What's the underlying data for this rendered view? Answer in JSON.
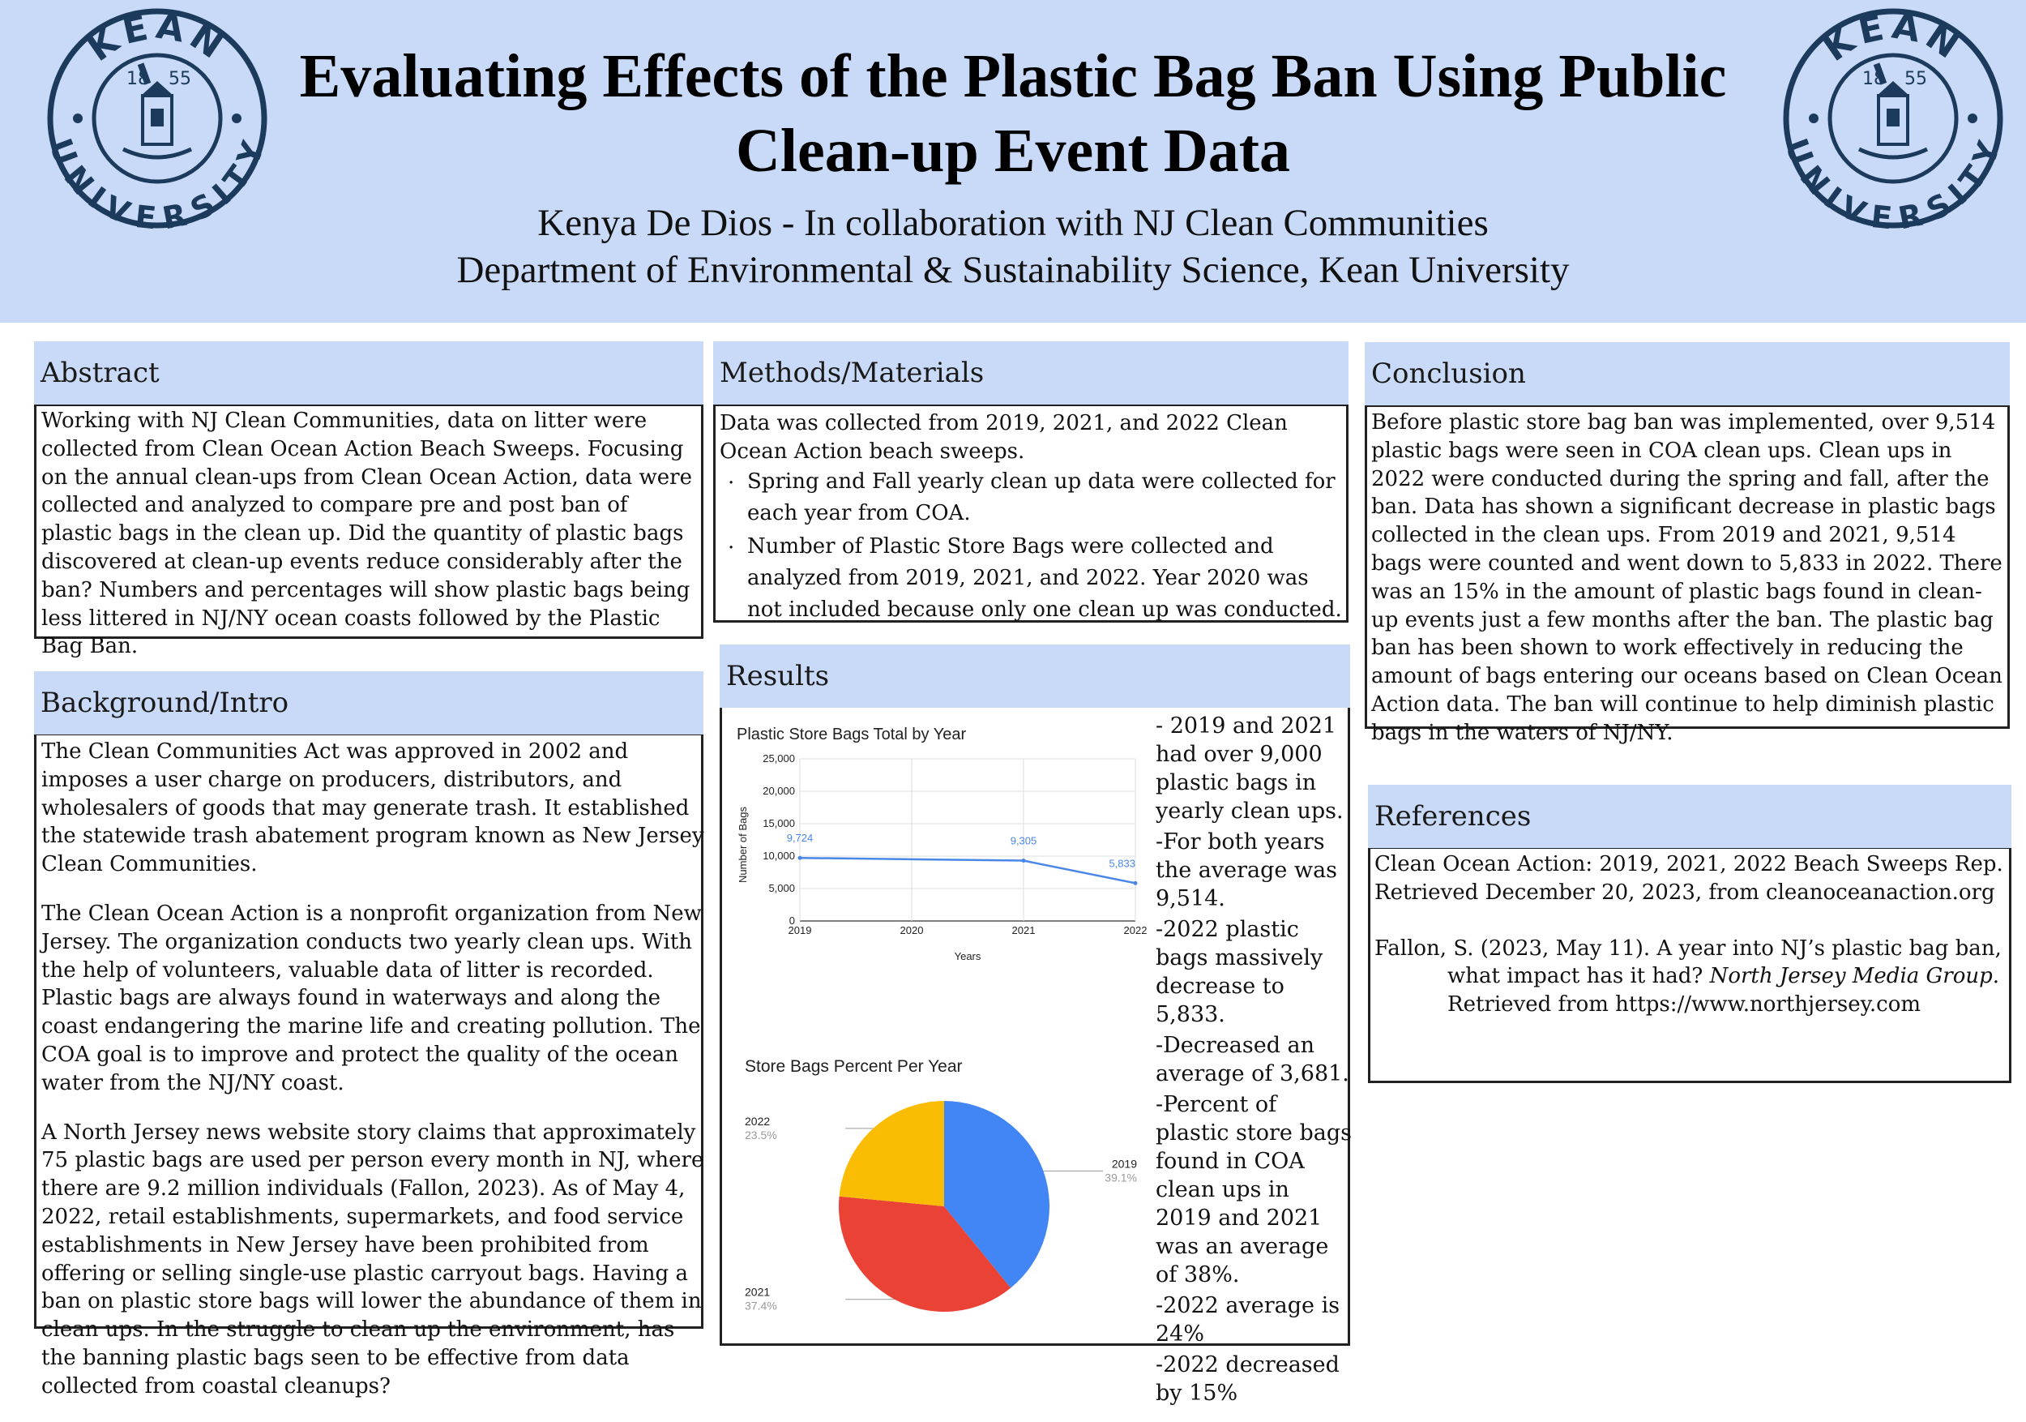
{
  "header": {
    "title_line1": "Evaluating Effects of the Plastic Bag Ban Using Public",
    "title_line2": "Clean-up Event Data",
    "author": "Kenya De Dios - In collaboration with NJ Clean Communities",
    "department": "Department of Environmental & Sustainability Science, Kean University",
    "logo": {
      "top_text": "KEAN",
      "bottom_text": "UNIVERSITY",
      "year_left": "18",
      "year_right": "55",
      "color": "#1b3a5c"
    }
  },
  "abstract": {
    "heading": "Abstract",
    "text": "Working with NJ Clean Communities, data on litter were collected from Clean Ocean Action Beach Sweeps. Focusing on the annual clean-ups from Clean Ocean Action,  data were collected and analyzed to compare pre and post ban of plastic bags in the clean up. Did the quantity of plastic bags discovered at clean-up events reduce considerably after the ban? Numbers and percentages will show plastic bags being less littered in NJ/NY ocean coasts followed by the Plastic Bag Ban."
  },
  "background": {
    "heading": "Background/Intro",
    "p1": "The Clean Communities Act was approved in 2002 and imposes a user charge on producers, distributors, and wholesalers of goods that may generate trash. It established the statewide trash abatement program known as New Jersey Clean Communities.",
    "p2": "The Clean Ocean Action is a nonprofit organization from New Jersey. The organization conducts two yearly clean ups. With the help of volunteers, valuable data of litter is recorded. Plastic bags are always found in waterways and along the coast endangering the marine life and creating pollution. The COA goal is to improve and protect the quality of the ocean water from the NJ/NY coast.",
    "p3": "A North Jersey news website story claims that approximately 75 plastic bags are used per person every month in NJ, where there are 9.2 million individuals (Fallon, 2023). As of May 4, 2022, retail establishments, supermarkets, and food service establishments in New Jersey have been prohibited from offering or selling single-use plastic carryout bags. Having a ban on plastic store bags will lower the abundance of them in clean ups.  In the struggle to clean up the environment, has the banning plastic bags seen to be effective from data collected from coastal cleanups?"
  },
  "methods": {
    "heading": "Methods/Materials",
    "intro": "Data was collected from 2019, 2021, and 2022  Clean Ocean Action beach sweeps.",
    "bullets": [
      "Spring and Fall yearly clean up data were collected for each year from COA.",
      "Number of Plastic Store Bags were collected and analyzed from 2019, 2021, and 2022. Year 2020 was not included because only one clean up was conducted."
    ]
  },
  "results": {
    "heading": "Results",
    "notes": [
      "- 2019 and 2021 had over 9,000 plastic bags in yearly clean ups.",
      "-For both years the average was 9,514.",
      "-2022 plastic bags massively decrease to 5,833.",
      "-Decreased an average of 3,681.",
      "-Percent of plastic store bags found in COA clean ups in 2019 and 2021 was an average of 38%.",
      "-2022 average is 24%",
      "-2022 decreased by 15%"
    ]
  },
  "conclusion": {
    "heading": "Conclusion",
    "text": "Before plastic store bag ban was implemented, over 9,514 plastic bags were seen in COA clean ups. Clean ups in 2022 were conducted during the spring and fall, after the ban. Data has shown a significant decrease in plastic bags collected in the clean ups. From 2019 and 2021, 9,514 bags were counted and went down to 5,833 in 2022.  There was an 15% in the amount of plastic bags found in clean-up events just  a few months after the ban. The plastic bag ban has been shown to work effectively in reducing the amount of bags entering our oceans based on Clean Ocean Action data. The ban will continue to help diminish plastic bags in the waters of NJ/NY."
  },
  "references": {
    "heading": "References",
    "r1_line1": "Clean Ocean Action: 2019, 2021, 2022  Beach Sweeps Rep.",
    "r1_line2": "Retrieved December 20, 2023, from cleanoceanaction.org",
    "r2_line1": "Fallon, S. (2023, May 11). A year into NJ’s plastic bag ban,",
    "r2_line2a": "what impact has it had? ",
    "r2_line2b": "North Jersey Media Group",
    "r2_line2c": ".",
    "r2_line3": "Retrieved from https://www.northjersey.com"
  },
  "chart_data": [
    {
      "type": "line",
      "title": "Plastic Store Bags Total by Year",
      "xlabel": "Years",
      "ylabel": "Number of Bags",
      "categories": [
        "2019",
        "2020",
        "2021",
        "2022"
      ],
      "series": [
        {
          "values": [
            9724,
            null,
            9305,
            5833
          ],
          "data_labels": [
            "9,724",
            "",
            "9,305",
            "5,833"
          ],
          "color": "#4a86e8"
        }
      ],
      "ylim": [
        0,
        25000
      ],
      "yticks": [
        0,
        5000,
        10000,
        15000,
        20000,
        25000
      ],
      "ytick_labels": [
        "0",
        "5,000",
        "10,000",
        "15,000",
        "20,000",
        "25,000"
      ],
      "grid": true
    },
    {
      "type": "pie",
      "title": "Store Bags Percent Per Year",
      "slices": [
        {
          "label": "2019",
          "value": 39.1,
          "pct_label": "39.1%",
          "color": "#4285f4"
        },
        {
          "label": "2021",
          "value": 37.4,
          "pct_label": "37.4%",
          "color": "#ea4335"
        },
        {
          "label": "2022",
          "value": 23.5,
          "pct_label": "23.5%",
          "color": "#fbbc04"
        }
      ]
    }
  ]
}
